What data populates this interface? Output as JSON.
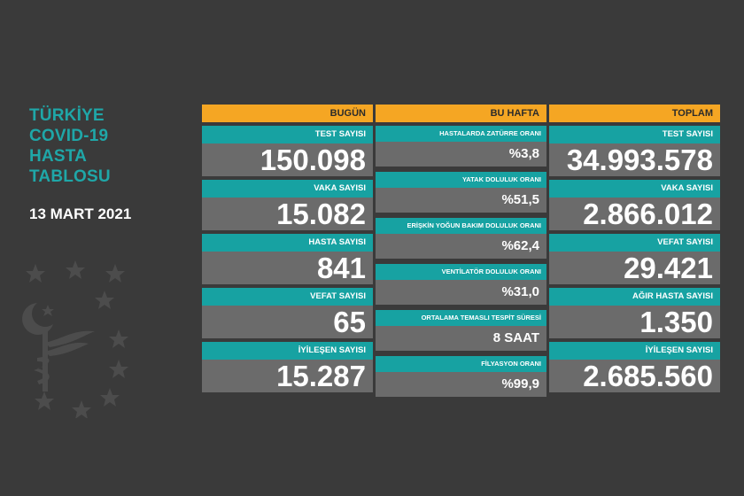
{
  "sidebar": {
    "title_lines": [
      "TÜRKİYE",
      "COVID-19",
      "HASTA",
      "TABLOSU"
    ],
    "date": "13 MART 2021",
    "emblem_icon": "ministry-of-health-emblem-icon"
  },
  "columns": {
    "today": {
      "header": "BUGÜN",
      "items": [
        {
          "label": "TEST SAYISI",
          "value": "150.098"
        },
        {
          "label": "VAKA SAYISI",
          "value": "15.082"
        },
        {
          "label": "HASTA SAYISI",
          "value": "841"
        },
        {
          "label": "VEFAT SAYISI",
          "value": "65"
        },
        {
          "label": "İYİLEŞEN SAYISI",
          "value": "15.287"
        }
      ]
    },
    "week": {
      "header": "BU HAFTA",
      "items": [
        {
          "label": "HASTALARDA ZATÜRRE ORANI",
          "value": "%3,8"
        },
        {
          "label": "YATAK DOLULUK ORANI",
          "value": "%51,5"
        },
        {
          "label": "ERİŞKİN YOĞUN BAKIM DOLULUK ORANI",
          "value": "%62,4"
        },
        {
          "label": "VENTİLATÖR DOLULUK ORANI",
          "value": "%31,0"
        },
        {
          "label": "ORTALAMA TEMASLI TESPİT SÜRESİ",
          "value": "8 SAAT"
        },
        {
          "label": "FİLYASYON ORANI",
          "value": "%99,9"
        }
      ]
    },
    "total": {
      "header": "TOPLAM",
      "items": [
        {
          "label": "TEST SAYISI",
          "value": "34.993.578"
        },
        {
          "label": "VAKA SAYISI",
          "value": "2.866.012"
        },
        {
          "label": "VEFAT SAYISI",
          "value": "29.421"
        },
        {
          "label": "AĞIR HASTA SAYISI",
          "value": "1.350"
        },
        {
          "label": "İYİLEŞEN SAYISI",
          "value": "2.685.560"
        }
      ]
    }
  },
  "colors": {
    "background": "#3a3a3a",
    "header": "#f5a623",
    "label": "#17a2a2",
    "value_box": "#6b6b6b",
    "title": "#1fa7a8"
  }
}
